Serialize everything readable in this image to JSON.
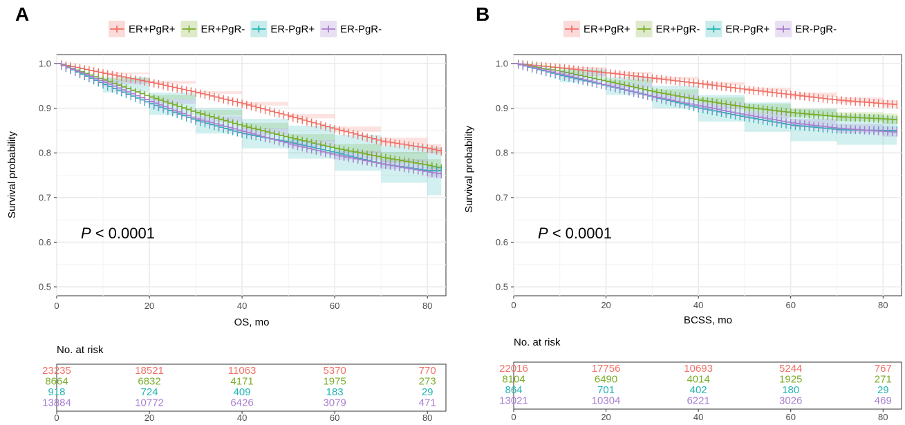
{
  "colors": {
    "ER+PgR+": "#f07167",
    "ER+PgR-": "#7aad2a",
    "ER-PgR+": "#22b3b3",
    "ER-PgR-": "#a87fd0",
    "grid": "#ebebeb",
    "axis": "#333333"
  },
  "chart_data": [
    {
      "panel_label": "A",
      "type": "line",
      "subtype": "kaplan-meier",
      "legend": [
        "ER+PgR+",
        "ER+PgR-",
        "ER-PgR+",
        "ER-PgR-"
      ],
      "legend_position": "top",
      "xlabel": "OS, mo",
      "ylabel": "Survival probability",
      "xlim": [
        0,
        84
      ],
      "ylim": [
        0.48,
        1.02
      ],
      "x_ticks": [
        0,
        20,
        40,
        60,
        80
      ],
      "y_ticks": [
        0.5,
        0.6,
        0.7,
        0.8,
        0.9,
        1.0
      ],
      "grid": true,
      "annotation": {
        "p_symbol": "P",
        "p_text": "< 0.0001"
      },
      "series": [
        {
          "name": "ER+PgR+",
          "x": [
            0,
            10,
            20,
            30,
            40,
            50,
            60,
            70,
            80,
            83
          ],
          "y": [
            1.0,
            0.978,
            0.958,
            0.935,
            0.91,
            0.882,
            0.853,
            0.826,
            0.81,
            0.803
          ],
          "ci_low": [
            1.0,
            0.976,
            0.955,
            0.932,
            0.906,
            0.877,
            0.847,
            0.818,
            0.8,
            0.79
          ],
          "ci_high": [
            1.0,
            0.98,
            0.961,
            0.938,
            0.914,
            0.887,
            0.859,
            0.834,
            0.82,
            0.816
          ]
        },
        {
          "name": "ER+PgR-",
          "x": [
            0,
            10,
            20,
            30,
            40,
            50,
            60,
            70,
            80,
            83
          ],
          "y": [
            1.0,
            0.963,
            0.925,
            0.89,
            0.86,
            0.834,
            0.81,
            0.79,
            0.772,
            0.765
          ],
          "ci_low": [
            1.0,
            0.959,
            0.92,
            0.884,
            0.853,
            0.826,
            0.8,
            0.778,
            0.758,
            0.75
          ],
          "ci_high": [
            1.0,
            0.967,
            0.93,
            0.896,
            0.867,
            0.842,
            0.82,
            0.802,
            0.786,
            0.78
          ]
        },
        {
          "name": "ER-PgR+",
          "x": [
            0,
            10,
            20,
            30,
            40,
            50,
            60,
            70,
            80,
            83
          ],
          "y": [
            1.0,
            0.953,
            0.91,
            0.872,
            0.843,
            0.824,
            0.8,
            0.775,
            0.76,
            0.76
          ],
          "ci_low": [
            1.0,
            0.935,
            0.885,
            0.843,
            0.81,
            0.787,
            0.76,
            0.733,
            0.705,
            0.705
          ],
          "ci_high": [
            1.0,
            0.97,
            0.935,
            0.9,
            0.876,
            0.861,
            0.84,
            0.817,
            0.812,
            0.812
          ]
        },
        {
          "name": "ER-PgR-",
          "x": [
            0,
            10,
            20,
            30,
            40,
            50,
            60,
            70,
            80,
            83
          ],
          "y": [
            1.0,
            0.958,
            0.915,
            0.876,
            0.848,
            0.82,
            0.795,
            0.775,
            0.757,
            0.752
          ],
          "ci_low": [
            1.0,
            0.954,
            0.91,
            0.87,
            0.841,
            0.812,
            0.785,
            0.764,
            0.744,
            0.738
          ],
          "ci_high": [
            1.0,
            0.962,
            0.92,
            0.882,
            0.855,
            0.828,
            0.805,
            0.786,
            0.77,
            0.766
          ]
        }
      ],
      "risk_table": {
        "title": "No. at risk",
        "x_ticks": [
          0,
          20,
          40,
          60,
          80
        ],
        "rows": [
          {
            "name": "ER+PgR+",
            "values": [
              "23235",
              "18521",
              "11063",
              "5370",
              "770"
            ]
          },
          {
            "name": "ER+PgR-",
            "values": [
              "8664",
              "6832",
              "4171",
              "1975",
              "273"
            ]
          },
          {
            "name": "ER-PgR+",
            "values": [
              "918",
              "724",
              "409",
              "183",
              "29"
            ]
          },
          {
            "name": "ER-PgR-",
            "values": [
              "13884",
              "10772",
              "6426",
              "3079",
              "471"
            ]
          }
        ]
      }
    },
    {
      "panel_label": "B",
      "type": "line",
      "subtype": "kaplan-meier",
      "legend": [
        "ER+PgR+",
        "ER+PgR-",
        "ER-PgR+",
        "ER-PgR-"
      ],
      "legend_position": "top",
      "xlabel": "BCSS, mo",
      "ylabel": "Survival probability",
      "xlim": [
        0,
        84
      ],
      "ylim": [
        0.48,
        1.02
      ],
      "x_ticks": [
        0,
        20,
        40,
        60,
        80
      ],
      "y_ticks": [
        0.5,
        0.6,
        0.7,
        0.8,
        0.9,
        1.0
      ],
      "grid": true,
      "annotation": {
        "p_symbol": "P",
        "p_text": "< 0.0001"
      },
      "series": [
        {
          "name": "ER+PgR+",
          "x": [
            0,
            10,
            20,
            30,
            40,
            50,
            60,
            70,
            80,
            83
          ],
          "y": [
            1.0,
            0.99,
            0.979,
            0.967,
            0.955,
            0.942,
            0.93,
            0.918,
            0.91,
            0.908
          ],
          "ci_low": [
            1.0,
            0.988,
            0.977,
            0.964,
            0.952,
            0.938,
            0.925,
            0.912,
            0.902,
            0.899
          ],
          "ci_high": [
            1.0,
            0.992,
            0.981,
            0.97,
            0.958,
            0.946,
            0.935,
            0.924,
            0.918,
            0.917
          ]
        },
        {
          "name": "ER+PgR-",
          "x": [
            0,
            10,
            20,
            30,
            40,
            50,
            60,
            70,
            80,
            83
          ],
          "y": [
            1.0,
            0.982,
            0.96,
            0.937,
            0.918,
            0.902,
            0.89,
            0.881,
            0.876,
            0.874
          ],
          "ci_low": [
            1.0,
            0.979,
            0.956,
            0.932,
            0.912,
            0.894,
            0.881,
            0.871,
            0.864,
            0.862
          ],
          "ci_high": [
            1.0,
            0.985,
            0.964,
            0.942,
            0.924,
            0.91,
            0.899,
            0.891,
            0.888,
            0.886
          ]
        },
        {
          "name": "ER-PgR+",
          "x": [
            0,
            10,
            20,
            30,
            40,
            50,
            60,
            70,
            80,
            83
          ],
          "y": [
            1.0,
            0.973,
            0.95,
            0.925,
            0.9,
            0.88,
            0.862,
            0.852,
            0.85,
            0.85
          ],
          "ci_low": [
            1.0,
            0.958,
            0.93,
            0.9,
            0.87,
            0.847,
            0.826,
            0.818,
            0.818,
            0.818
          ],
          "ci_high": [
            1.0,
            0.988,
            0.97,
            0.95,
            0.93,
            0.913,
            0.898,
            0.886,
            0.882,
            0.882
          ]
        },
        {
          "name": "ER-PgR-",
          "x": [
            0,
            10,
            20,
            30,
            40,
            50,
            60,
            70,
            80,
            83
          ],
          "y": [
            1.0,
            0.976,
            0.951,
            0.926,
            0.905,
            0.885,
            0.867,
            0.855,
            0.848,
            0.846
          ],
          "ci_low": [
            1.0,
            0.972,
            0.946,
            0.92,
            0.898,
            0.877,
            0.858,
            0.845,
            0.836,
            0.834
          ],
          "ci_high": [
            1.0,
            0.98,
            0.956,
            0.932,
            0.912,
            0.893,
            0.876,
            0.865,
            0.86,
            0.858
          ]
        }
      ],
      "risk_table": {
        "title": "No. at risk",
        "x_ticks": [
          0,
          20,
          40,
          60,
          80
        ],
        "rows": [
          {
            "name": "ER+PgR+",
            "values": [
              "22016",
              "17756",
              "10693",
              "5244",
              "767"
            ]
          },
          {
            "name": "ER+PgR-",
            "values": [
              "8104",
              "6490",
              "4014",
              "1925",
              "271"
            ]
          },
          {
            "name": "ER-PgR+",
            "values": [
              "864",
              "701",
              "402",
              "180",
              "29"
            ]
          },
          {
            "name": "ER-PgR-",
            "values": [
              "13021",
              "10304",
              "6221",
              "3026",
              "469"
            ]
          }
        ]
      }
    }
  ]
}
